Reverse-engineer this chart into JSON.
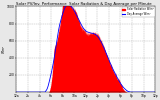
{
  "title": "Solar PV/Inv. Performance  Solar Radiation & Day Average per Minute",
  "title_fontsize": 2.8,
  "bg_color": "#e8e8e8",
  "plot_bg": "#ffffff",
  "area_color": "#ff0000",
  "line_color": "#cc0000",
  "avg_line_color": "#0000ff",
  "legend_entries": [
    "Solar Radiation W/m²",
    "Day Average W/m²"
  ],
  "legend_colors": [
    "#ff0000",
    "#0000ff"
  ],
  "ylabel_left": "W/m²",
  "ylim": [
    0,
    1000
  ],
  "yticks": [
    200,
    400,
    600,
    800,
    1000
  ],
  "xlim": [
    0,
    1440
  ],
  "grid_color": "#aaaaaa",
  "tick_fontsize": 2.2,
  "n_points": 1440,
  "peak_value": 950
}
